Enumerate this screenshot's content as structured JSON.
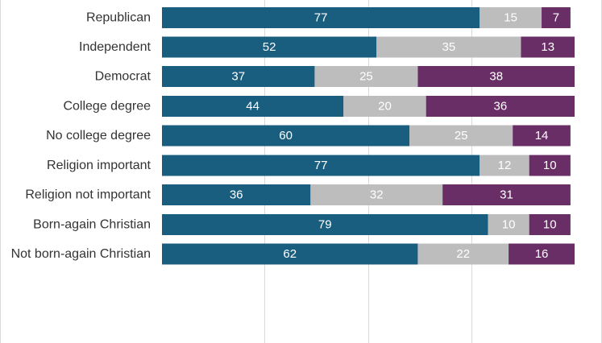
{
  "chart_data": {
    "type": "bar",
    "orientation": "horizontal",
    "stacked": true,
    "grid": true,
    "xlim": [
      0,
      100
    ],
    "categories": [
      "Republican",
      "Independent",
      "Democrat",
      "College degree",
      "No college degree",
      "Religion important",
      "Religion not important",
      "Born-again Christian",
      "Not born-again Christian"
    ],
    "groups": [
      [
        0,
        1,
        2
      ],
      [
        3,
        4
      ],
      [
        5,
        6
      ],
      [
        7,
        8
      ]
    ],
    "series": [
      {
        "color": "#1a5e7f",
        "values": [
          77,
          52,
          37,
          44,
          60,
          77,
          36,
          79,
          62
        ]
      },
      {
        "color": "#bdbdbd",
        "values": [
          15,
          35,
          25,
          20,
          25,
          12,
          32,
          10,
          22
        ]
      },
      {
        "color": "#6a2e67",
        "values": [
          7,
          13,
          38,
          36,
          14,
          10,
          31,
          10,
          16
        ]
      }
    ]
  }
}
